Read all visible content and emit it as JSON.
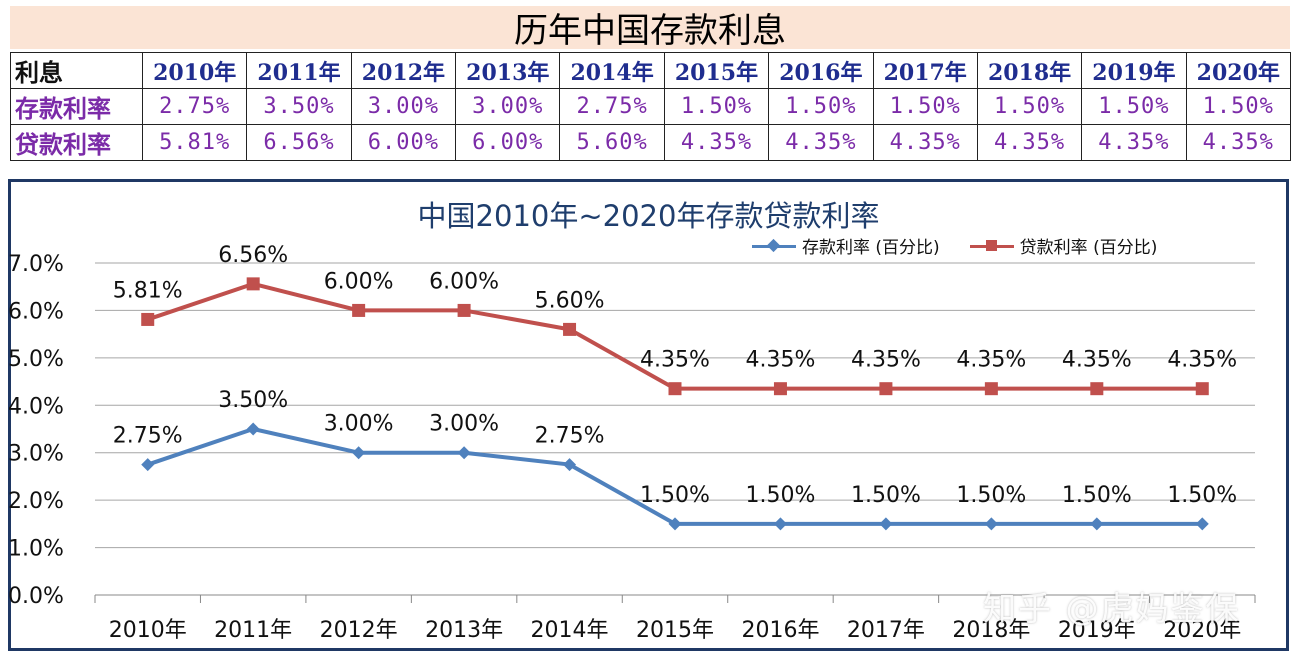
{
  "table": {
    "title": "历年中国存款利息",
    "header_label": "利息",
    "years": [
      "2010年",
      "2011年",
      "2012年",
      "2013年",
      "2014年",
      "2015年",
      "2016年",
      "2017年",
      "2018年",
      "2019年",
      "2020年"
    ],
    "rows": [
      {
        "label": "存款利率",
        "values": [
          "2.75%",
          "3.50%",
          "3.00%",
          "3.00%",
          "2.75%",
          "1.50%",
          "1.50%",
          "1.50%",
          "1.50%",
          "1.50%",
          "1.50%"
        ]
      },
      {
        "label": "贷款利率",
        "values": [
          "5.81%",
          "6.56%",
          "6.00%",
          "6.00%",
          "5.60%",
          "4.35%",
          "4.35%",
          "4.35%",
          "4.35%",
          "4.35%",
          "4.35%"
        ]
      }
    ]
  },
  "chart_data": {
    "type": "line",
    "title": "中国2010年~2020年存款贷款利率",
    "categories": [
      "2010年",
      "2011年",
      "2012年",
      "2013年",
      "2014年",
      "2015年",
      "2016年",
      "2017年",
      "2018年",
      "2019年",
      "2020年"
    ],
    "series": [
      {
        "name": "存款利率 (百分比)",
        "values": [
          2.75,
          3.5,
          3.0,
          3.0,
          2.75,
          1.5,
          1.5,
          1.5,
          1.5,
          1.5,
          1.5
        ],
        "labels": [
          "2.75%",
          "3.50%",
          "3.00%",
          "3.00%",
          "2.75%",
          "1.50%",
          "1.50%",
          "1.50%",
          "1.50%",
          "1.50%",
          "1.50%"
        ],
        "color": "#4f81bd",
        "marker": "diamond"
      },
      {
        "name": "贷款利率 (百分比)",
        "values": [
          5.81,
          6.56,
          6.0,
          6.0,
          5.6,
          4.35,
          4.35,
          4.35,
          4.35,
          4.35,
          4.35
        ],
        "labels": [
          "5.81%",
          "6.56%",
          "6.00%",
          "6.00%",
          "5.60%",
          "4.35%",
          "4.35%",
          "4.35%",
          "4.35%",
          "4.35%",
          "4.35%"
        ],
        "color": "#c0504d",
        "marker": "square"
      }
    ],
    "y_ticks": [
      "0.0%",
      "1.0%",
      "2.0%",
      "3.0%",
      "4.0%",
      "5.0%",
      "6.0%",
      "7.0%"
    ],
    "ylim": [
      0,
      7
    ],
    "grid": true,
    "legend": "top-right"
  },
  "watermark": "知乎 @虎妈鉴保"
}
